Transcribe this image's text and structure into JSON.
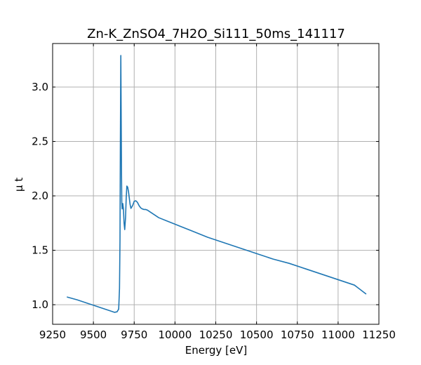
{
  "chart_data": {
    "type": "line",
    "title": "Zn-K_ZnSO4_7H2O_Si111_50ms_141117",
    "xlabel": "Energy [eV]",
    "ylabel": "μ t",
    "xlim": [
      9250,
      11250
    ],
    "ylim": [
      0.82,
      3.4
    ],
    "x_ticks": [
      9250,
      9500,
      9750,
      10000,
      10250,
      10500,
      10750,
      11000,
      11250
    ],
    "y_ticks": [
      1.0,
      1.5,
      2.0,
      2.5,
      3.0
    ],
    "x_tick_labels": [
      "9250",
      "9500",
      "9750",
      "10000",
      "10250",
      "10500",
      "10750",
      "11000",
      "11250"
    ],
    "y_tick_labels": [
      "1.0",
      "1.5",
      "2.0",
      "2.5",
      "3.0"
    ],
    "grid": true,
    "line_color": "#1f77b4",
    "series": [
      {
        "name": "",
        "x": [
          9340,
          9400,
          9450,
          9500,
          9550,
          9600,
          9630,
          9645,
          9655,
          9660,
          9663,
          9665,
          9668,
          9670,
          9672,
          9674,
          9676,
          9678,
          9680,
          9684,
          9688,
          9692,
          9697,
          9701,
          9705,
          9710,
          9715,
          9720,
          9725,
          9730,
          9740,
          9750,
          9760,
          9770,
          9780,
          9790,
          9800,
          9810,
          9820,
          9830,
          9850,
          9880,
          9900,
          9950,
          10000,
          10100,
          10200,
          10300,
          10400,
          10500,
          10600,
          10700,
          10800,
          10900,
          11000,
          11100,
          11170
        ],
        "y": [
          1.07,
          1.045,
          1.02,
          0.995,
          0.97,
          0.945,
          0.93,
          0.935,
          0.96,
          1.15,
          1.6,
          2.4,
          3.29,
          2.8,
          2.25,
          1.93,
          1.88,
          1.9,
          1.93,
          1.88,
          1.75,
          1.69,
          1.8,
          1.98,
          2.09,
          2.08,
          2.04,
          1.98,
          1.92,
          1.885,
          1.91,
          1.95,
          1.955,
          1.94,
          1.91,
          1.89,
          1.88,
          1.875,
          1.875,
          1.87,
          1.85,
          1.82,
          1.8,
          1.77,
          1.74,
          1.68,
          1.62,
          1.57,
          1.52,
          1.47,
          1.42,
          1.38,
          1.33,
          1.28,
          1.23,
          1.18,
          1.1
        ]
      }
    ]
  }
}
